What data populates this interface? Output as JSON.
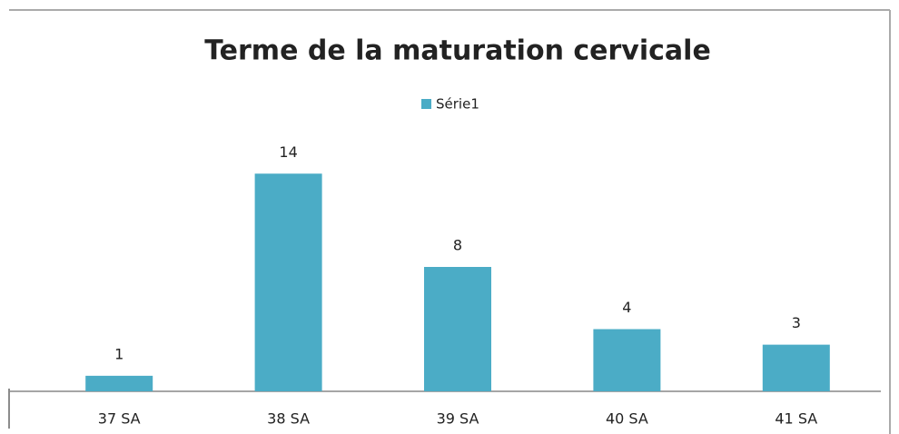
{
  "chart_data": {
    "type": "bar",
    "title": "Terme de la maturation cervicale",
    "categories": [
      "37 SA",
      "38 SA",
      "39 SA",
      "40 SA",
      "41 SA"
    ],
    "series": [
      {
        "name": "Série1",
        "color": "#4bacc6",
        "values": [
          1,
          14,
          8,
          4,
          3
        ]
      }
    ],
    "ylim": [
      0,
      16
    ],
    "legend": "top"
  }
}
